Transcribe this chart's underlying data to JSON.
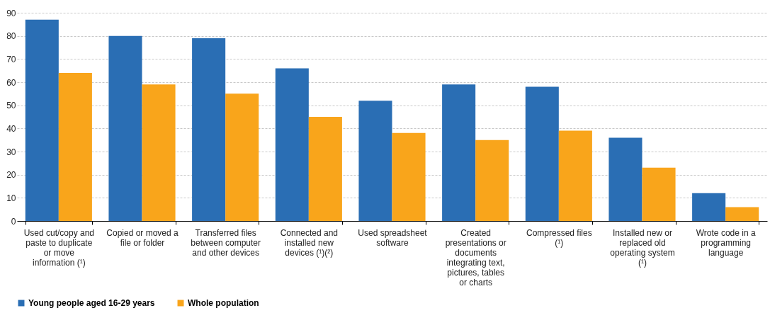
{
  "chart_data": {
    "type": "bar",
    "categories": [
      "Used cut/copy and paste to duplicate or move information (¹)",
      "Copied or moved a file or folder",
      "Transferred files between computer and other devices",
      "Connected and installed new devices (¹)(²)",
      "Used spreadsheet software",
      "Created presentations or documents integrating text, pictures, tables or charts",
      "Compressed files (¹)",
      "Installed new or replaced old operating system (¹)",
      "Wrote code in a programming language"
    ],
    "series": [
      {
        "name": "Young people aged 16-29 years",
        "color": "#2a6eb4",
        "values": [
          87,
          80,
          79,
          66,
          52,
          59,
          58,
          36,
          12
        ]
      },
      {
        "name": "Whole population",
        "color": "#f9a51b",
        "values": [
          64,
          59,
          55,
          45,
          38,
          35,
          39,
          23,
          6
        ]
      }
    ],
    "ylim": [
      0,
      90
    ],
    "yticks": [
      0,
      10,
      20,
      30,
      40,
      50,
      60,
      70,
      80,
      90
    ],
    "grid": "y",
    "legend": "bottom"
  }
}
